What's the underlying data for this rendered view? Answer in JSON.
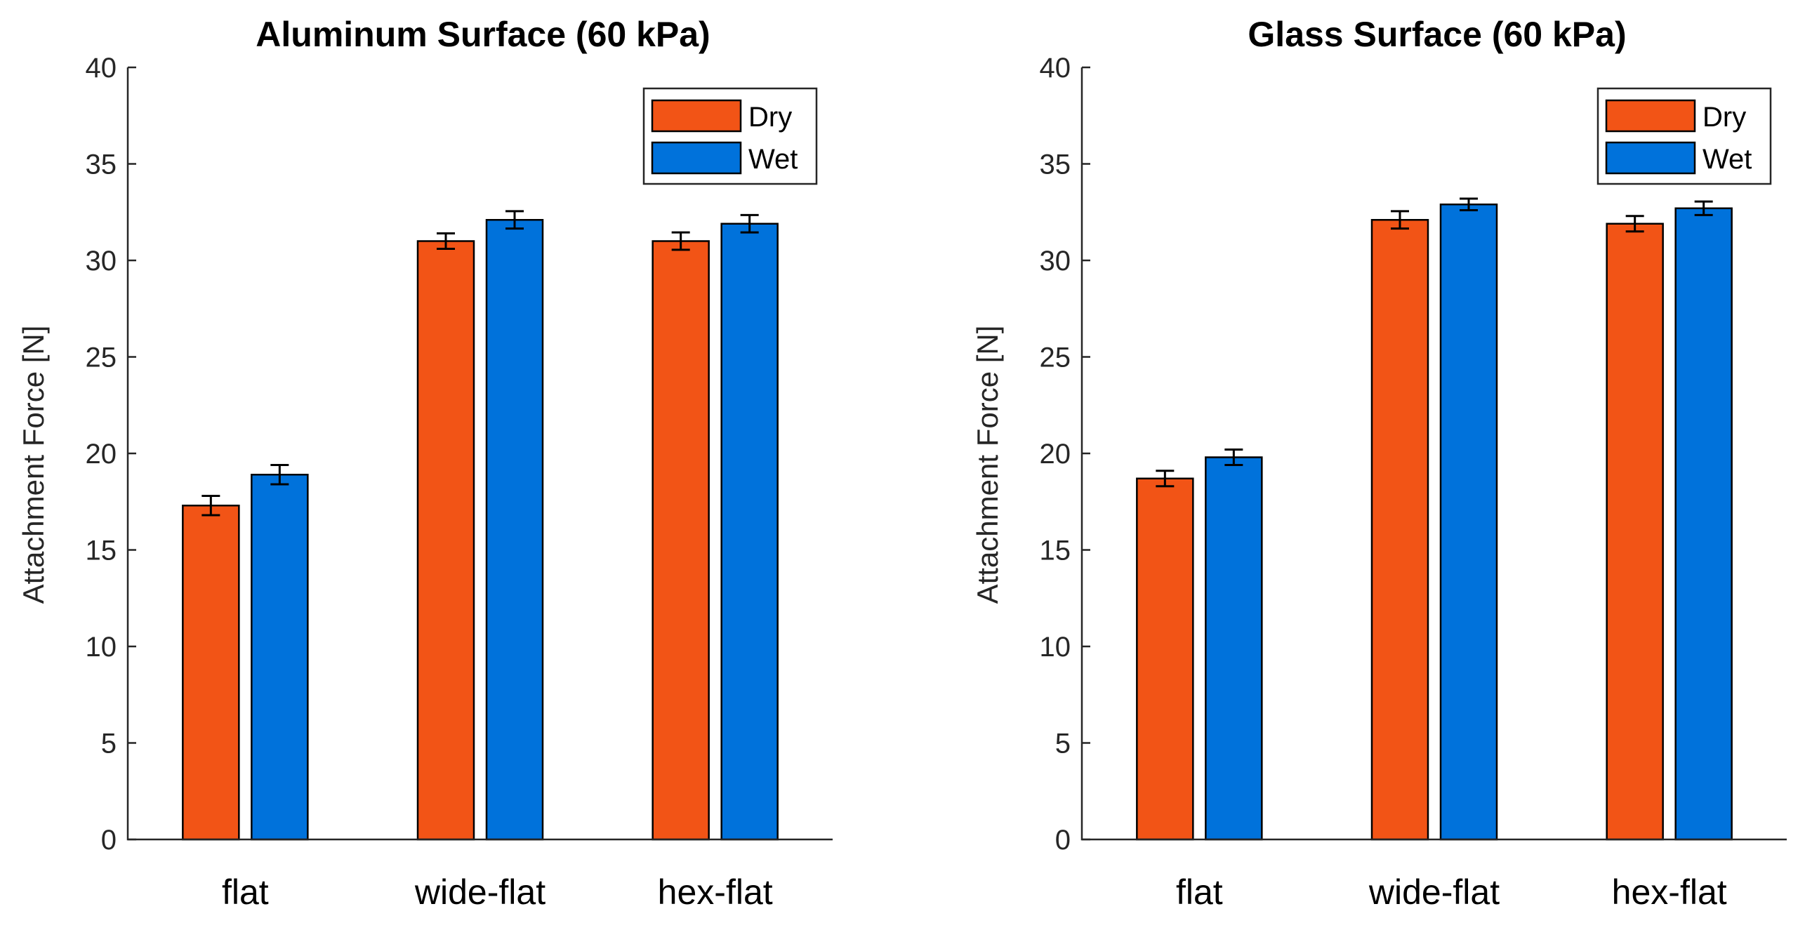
{
  "colors": {
    "dry": "#F25416",
    "wet": "#0072DB"
  },
  "chart_data": [
    {
      "type": "bar",
      "title": "Aluminum Surface (60 kPa)",
      "ylabel": "Attachment Force [N]",
      "xlabel": "",
      "ylim": [
        0,
        40
      ],
      "yticks": [
        0,
        5,
        10,
        15,
        20,
        25,
        30,
        35,
        40
      ],
      "grid": false,
      "legend_position": "top-right",
      "categories": [
        "flat",
        "wide-flat",
        "hex-flat"
      ],
      "series": [
        {
          "name": "Dry",
          "color": "#F25416",
          "values": [
            17.3,
            31.0,
            31.0
          ],
          "errors": [
            0.5,
            0.4,
            0.45
          ]
        },
        {
          "name": "Wet",
          "color": "#0072DB",
          "values": [
            18.9,
            32.1,
            31.9
          ],
          "errors": [
            0.5,
            0.45,
            0.45
          ]
        }
      ]
    },
    {
      "type": "bar",
      "title": "Glass Surface (60 kPa)",
      "ylabel": "Attachment Force [N]",
      "xlabel": "",
      "ylim": [
        0,
        40
      ],
      "yticks": [
        0,
        5,
        10,
        15,
        20,
        25,
        30,
        35,
        40
      ],
      "grid": false,
      "legend_position": "top-right",
      "categories": [
        "flat",
        "wide-flat",
        "hex-flat"
      ],
      "series": [
        {
          "name": "Dry",
          "color": "#F25416",
          "values": [
            18.7,
            32.1,
            31.9
          ],
          "errors": [
            0.4,
            0.45,
            0.4
          ]
        },
        {
          "name": "Wet",
          "color": "#0072DB",
          "values": [
            19.8,
            32.9,
            32.7
          ],
          "errors": [
            0.4,
            0.3,
            0.35
          ]
        }
      ]
    }
  ]
}
